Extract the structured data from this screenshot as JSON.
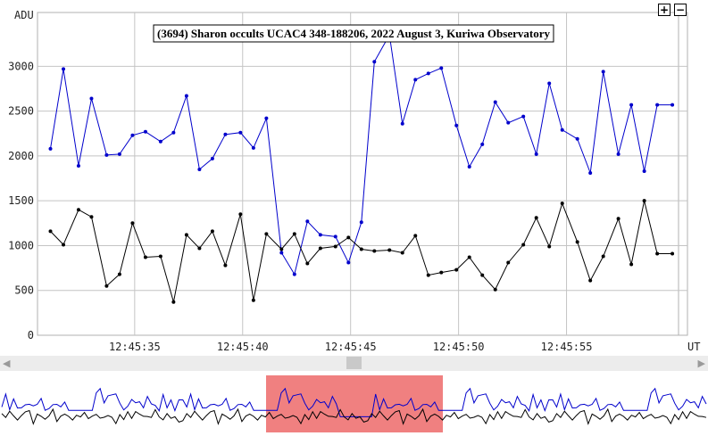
{
  "chart_data": {
    "type": "line",
    "title": "(3694) Sharon occults UCAC4 348-188206, 2022 August 3, Kuriwa Observatory",
    "ylabel": "ADU",
    "xlabel": "UT",
    "ylim": [
      0,
      3600
    ],
    "yticks": [
      0,
      500,
      1000,
      1500,
      2000,
      2500,
      3000
    ],
    "xticks": [
      "12:45:35",
      "12:45:40",
      "12:45:45",
      "12:45:50",
      "12:45:55"
    ],
    "grid": true,
    "series": [
      {
        "color": "#0000cc",
        "x": [
          31.1,
          31.7,
          32.4,
          33.0,
          33.7,
          34.3,
          34.9,
          35.5,
          36.2,
          36.8,
          37.4,
          38.0,
          38.6,
          39.2,
          39.9,
          40.5,
          41.1,
          41.8,
          42.4,
          43.0,
          43.6,
          44.3,
          44.9,
          45.5,
          46.1,
          46.8,
          47.4,
          48.0,
          48.6,
          49.2,
          49.9,
          50.5,
          51.1,
          51.7,
          52.3,
          53.0,
          53.6,
          54.2,
          54.8,
          55.5,
          56.1,
          56.7,
          57.4,
          58.0,
          58.6,
          59.2,
          59.9
        ],
        "y": [
          2080,
          2970,
          1890,
          2640,
          2010,
          2020,
          2230,
          2270,
          2160,
          2260,
          2670,
          1850,
          1970,
          2240,
          2260,
          2090,
          2420,
          920,
          680,
          1270,
          1120,
          1100,
          810,
          1260,
          3050,
          3350,
          2360,
          2850,
          2920,
          2980,
          2340,
          1880,
          2130,
          2600,
          2370,
          2440,
          2020,
          2810,
          2290,
          2190,
          1810,
          2940,
          2020,
          2570,
          1830,
          2570,
          2570
        ]
      },
      {
        "color": "#000000",
        "x": [
          31.1,
          31.7,
          32.4,
          33.0,
          33.7,
          34.3,
          34.9,
          35.5,
          36.2,
          36.8,
          37.4,
          38.0,
          38.6,
          39.2,
          39.9,
          40.5,
          41.1,
          41.8,
          42.4,
          43.0,
          43.6,
          44.3,
          44.9,
          45.5,
          46.1,
          46.8,
          47.4,
          48.0,
          48.6,
          49.2,
          49.9,
          50.5,
          51.1,
          51.7,
          52.3,
          53.0,
          53.6,
          54.2,
          54.8,
          55.5,
          56.1,
          56.7,
          57.4,
          58.0,
          58.6,
          59.2,
          59.9
        ],
        "y": [
          1160,
          1010,
          1400,
          1320,
          550,
          680,
          1250,
          870,
          880,
          370,
          1120,
          970,
          1160,
          780,
          1350,
          390,
          1130,
          960,
          1130,
          800,
          970,
          990,
          1090,
          960,
          940,
          950,
          920,
          1110,
          670,
          700,
          730,
          870,
          670,
          510,
          810,
          1010,
          1310,
          990,
          1470,
          1040,
          610,
          880,
          1300,
          790,
          1500,
          910,
          910
        ]
      }
    ]
  },
  "ui": {
    "zoom_in_label": "+",
    "zoom_out_label": "−",
    "scroll_left": "◀",
    "scroll_right": "▶",
    "selection_color": "#f08080"
  }
}
